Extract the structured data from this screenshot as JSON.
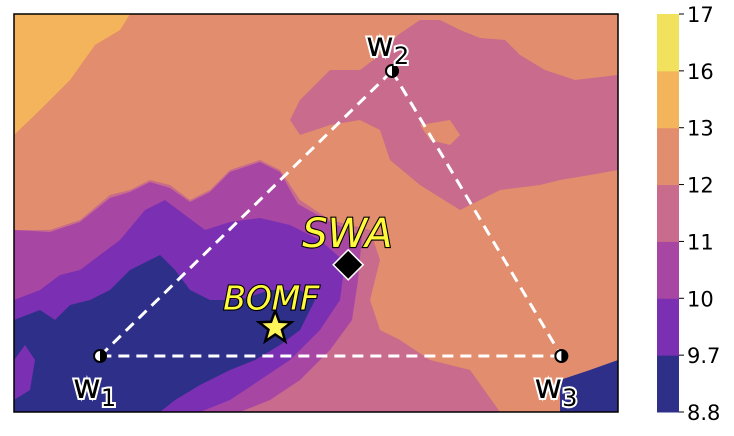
{
  "chart_data": {
    "type": "contour",
    "levels": [
      8.8,
      9.7,
      10,
      11,
      12,
      13,
      16,
      17
    ],
    "level_labels": [
      "8.8",
      "9.7",
      "10",
      "11",
      "12",
      "13",
      "16",
      "17"
    ],
    "band_colors": [
      "#2e2f88",
      "#7b2fb2",
      "#a846a3",
      "#c86b8c",
      "#e28d6d",
      "#f4b45c",
      "#f2e15c"
    ],
    "points": [
      {
        "id": "w1",
        "label": "w",
        "sub": "1",
        "x": 0.0,
        "y": 0.0
      },
      {
        "id": "w2",
        "label": "w",
        "sub": "2",
        "x": 1.0,
        "y": 1.0
      },
      {
        "id": "w3",
        "label": "w",
        "sub": "3",
        "x": 1.58,
        "y": 0.0
      }
    ],
    "markers": [
      {
        "id": "swa",
        "label": "SWA",
        "shape": "diamond",
        "color": "#000000",
        "x": 0.85,
        "y": 0.32
      },
      {
        "id": "bomf",
        "label": "BOMF",
        "shape": "star",
        "color": "#fff35a",
        "x": 0.6,
        "y": 0.1
      }
    ],
    "triangle_style": "dashed-white",
    "colorbar": true
  }
}
